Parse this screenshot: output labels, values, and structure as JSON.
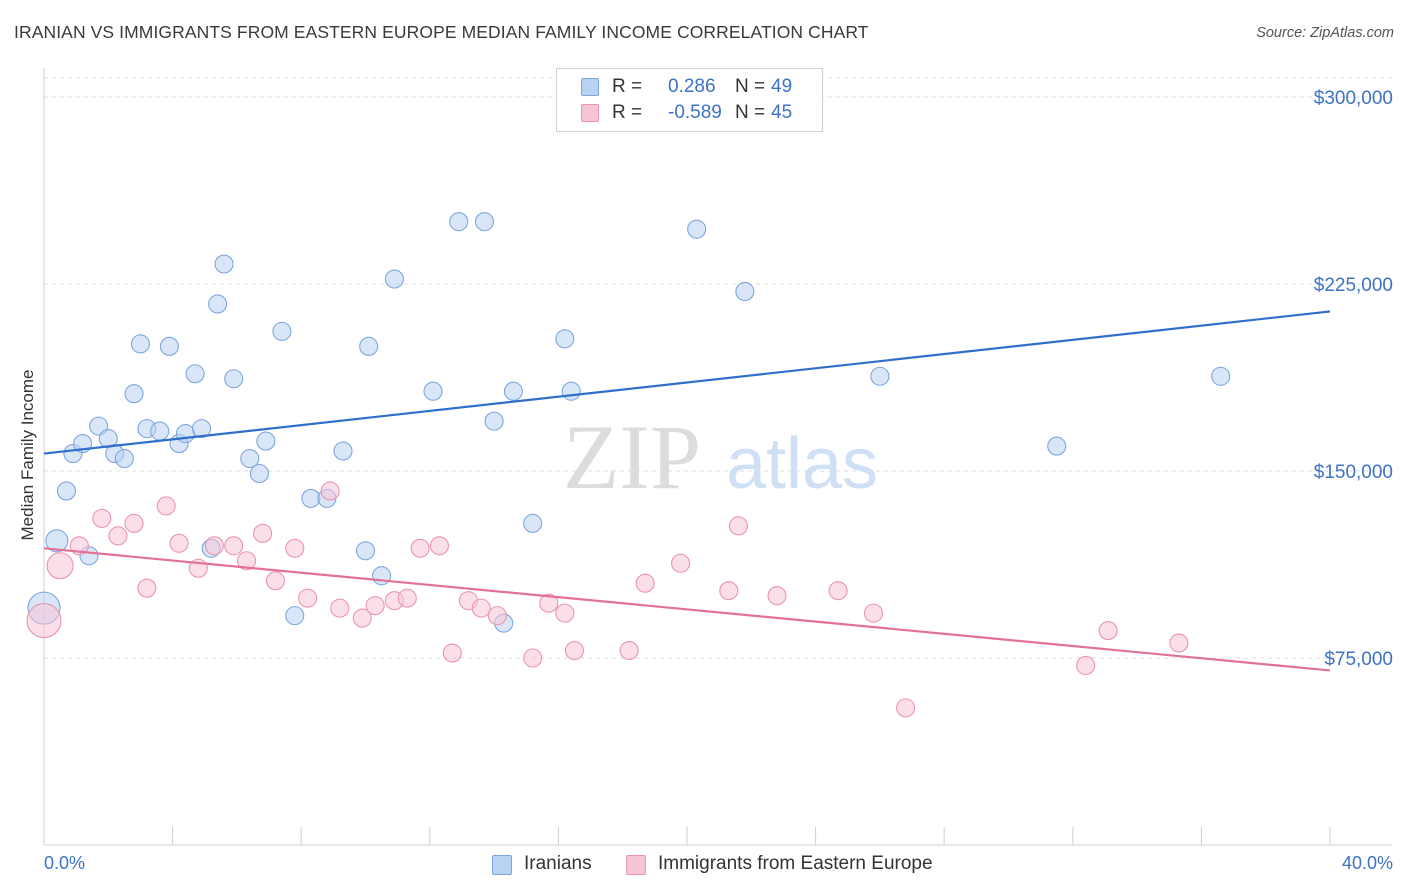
{
  "title": "IRANIAN VS IMMIGRANTS FROM EASTERN EUROPE MEDIAN FAMILY INCOME CORRELATION CHART",
  "source": "Source: ZipAtlas.com",
  "watermark": {
    "zip": "ZIP",
    "atlas": "atlas"
  },
  "colors": {
    "blue_fill": "#b9d1f2",
    "blue_stroke": "#7ea6de",
    "blue_line": "#2f6fcb",
    "pink_fill": "#f7c5d5",
    "pink_stroke": "#ea94b2",
    "pink_line": "#e2719a",
    "axis_text": "#3d72c4",
    "grid": "#dcdcdc"
  },
  "legend": {
    "rows": [
      {
        "r_label": "R =",
        "r_value": "0.286",
        "n_label": "N =",
        "n_value": "49"
      },
      {
        "r_label": "R =",
        "r_value": "-0.589",
        "n_label": "N =",
        "n_value": "45"
      }
    ]
  },
  "bottom_legend": [
    "Iranians",
    "Immigrants from Eastern Europe"
  ],
  "chart_data": {
    "type": "scatter",
    "title": "IRANIAN VS IMMIGRANTS FROM EASTERN EUROPE MEDIAN FAMILY INCOME CORRELATION CHART",
    "xlabel": "",
    "ylabel": "Median Family Income",
    "xlim": [
      0,
      40
    ],
    "ylim": [
      0,
      310000
    ],
    "x_tick_labels": [
      "0.0%",
      "40.0%"
    ],
    "y_ticks": [
      75000,
      150000,
      225000,
      300000
    ],
    "y_tick_labels": [
      "$75,000",
      "$150,000",
      "$225,000",
      "$300,000"
    ],
    "grid": "horizontal dashed",
    "legend_position": "top-center",
    "series": [
      {
        "name": "Iranians",
        "trend": [
          [
            0,
            157000
          ],
          [
            40,
            214000
          ]
        ],
        "points": [
          [
            0.0,
            95000,
            16
          ],
          [
            0.4,
            122000,
            11
          ],
          [
            0.7,
            142000,
            9
          ],
          [
            0.9,
            157000,
            9
          ],
          [
            1.2,
            161000,
            9
          ],
          [
            1.4,
            116000,
            9
          ],
          [
            1.7,
            168000,
            9
          ],
          [
            2.0,
            163000,
            9
          ],
          [
            2.2,
            157000,
            9
          ],
          [
            2.5,
            155000,
            9
          ],
          [
            2.8,
            181000,
            9
          ],
          [
            3.0,
            201000,
            9
          ],
          [
            3.2,
            167000,
            9
          ],
          [
            3.6,
            166000,
            9
          ],
          [
            3.9,
            200000,
            9
          ],
          [
            4.2,
            161000,
            9
          ],
          [
            4.4,
            165000,
            9
          ],
          [
            4.7,
            189000,
            9
          ],
          [
            4.9,
            167000,
            9
          ],
          [
            5.2,
            119000,
            9
          ],
          [
            5.4,
            217000,
            9
          ],
          [
            5.6,
            233000,
            9
          ],
          [
            5.9,
            187000,
            9
          ],
          [
            6.4,
            155000,
            9
          ],
          [
            6.7,
            149000,
            9
          ],
          [
            6.9,
            162000,
            9
          ],
          [
            7.4,
            206000,
            9
          ],
          [
            7.8,
            92000,
            9
          ],
          [
            8.3,
            139000,
            9
          ],
          [
            8.8,
            139000,
            9
          ],
          [
            9.3,
            158000,
            9
          ],
          [
            10.0,
            118000,
            9
          ],
          [
            10.1,
            200000,
            9
          ],
          [
            10.5,
            108000,
            9
          ],
          [
            10.9,
            227000,
            9
          ],
          [
            12.1,
            182000,
            9
          ],
          [
            12.9,
            250000,
            9
          ],
          [
            13.7,
            250000,
            9
          ],
          [
            14.0,
            170000,
            9
          ],
          [
            14.3,
            89000,
            9
          ],
          [
            14.6,
            182000,
            9
          ],
          [
            15.2,
            129000,
            9
          ],
          [
            16.2,
            203000,
            9
          ],
          [
            16.4,
            182000,
            9
          ],
          [
            20.3,
            247000,
            9
          ],
          [
            21.8,
            222000,
            9
          ],
          [
            26.0,
            188000,
            9
          ],
          [
            31.5,
            160000,
            9
          ],
          [
            36.6,
            188000,
            9
          ]
        ]
      },
      {
        "name": "Immigrants from Eastern Europe",
        "trend": [
          [
            0,
            119000
          ],
          [
            40,
            70000
          ]
        ],
        "points": [
          [
            0.0,
            90000,
            17
          ],
          [
            0.5,
            112000,
            13
          ],
          [
            1.1,
            120000,
            9
          ],
          [
            1.8,
            131000,
            9
          ],
          [
            2.3,
            124000,
            9
          ],
          [
            2.8,
            129000,
            9
          ],
          [
            3.2,
            103000,
            9
          ],
          [
            3.8,
            136000,
            9
          ],
          [
            4.2,
            121000,
            9
          ],
          [
            4.8,
            111000,
            9
          ],
          [
            5.3,
            120000,
            9
          ],
          [
            5.9,
            120000,
            9
          ],
          [
            6.3,
            114000,
            9
          ],
          [
            6.8,
            125000,
            9
          ],
          [
            7.2,
            106000,
            9
          ],
          [
            7.8,
            119000,
            9
          ],
          [
            8.2,
            99000,
            9
          ],
          [
            8.9,
            142000,
            9
          ],
          [
            9.2,
            95000,
            9
          ],
          [
            9.9,
            91000,
            9
          ],
          [
            10.3,
            96000,
            9
          ],
          [
            10.9,
            98000,
            9
          ],
          [
            11.3,
            99000,
            9
          ],
          [
            11.7,
            119000,
            9
          ],
          [
            12.3,
            120000,
            9
          ],
          [
            12.7,
            77000,
            9
          ],
          [
            13.2,
            98000,
            9
          ],
          [
            13.6,
            95000,
            9
          ],
          [
            14.1,
            92000,
            9
          ],
          [
            15.2,
            75000,
            9
          ],
          [
            15.7,
            97000,
            9
          ],
          [
            16.2,
            93000,
            9
          ],
          [
            16.5,
            78000,
            9
          ],
          [
            18.2,
            78000,
            9
          ],
          [
            18.7,
            105000,
            9
          ],
          [
            19.8,
            113000,
            9
          ],
          [
            21.3,
            102000,
            9
          ],
          [
            21.6,
            128000,
            9
          ],
          [
            22.8,
            100000,
            9
          ],
          [
            24.7,
            102000,
            9
          ],
          [
            25.8,
            93000,
            9
          ],
          [
            26.8,
            55000,
            9
          ],
          [
            32.4,
            72000,
            9
          ],
          [
            33.1,
            86000,
            9
          ],
          [
            35.3,
            81000,
            9
          ]
        ]
      }
    ]
  }
}
